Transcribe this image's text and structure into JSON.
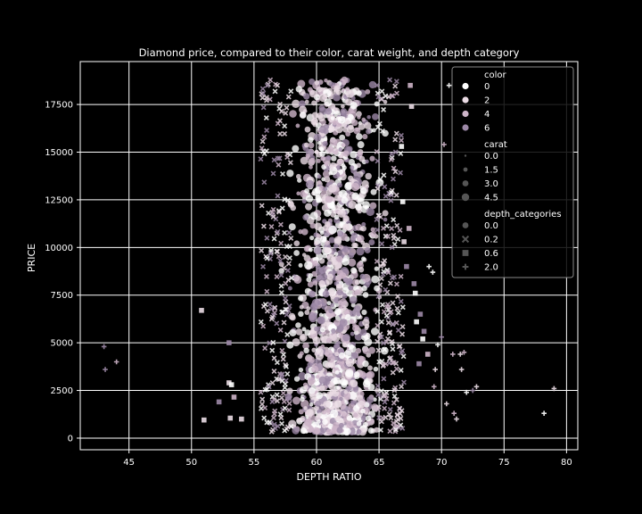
{
  "chart_data": {
    "type": "scatter",
    "title": "Diamond price, compared to their color, carat weight, and depth category",
    "xlabel": "DEPTH RATIO",
    "ylabel": "PRICE",
    "xlim": [
      41.1,
      80.9
    ],
    "ylim": [
      -610,
      19750
    ],
    "xticks": [
      "45",
      "50",
      "55",
      "60",
      "65",
      "70",
      "75",
      "80"
    ],
    "yticks": [
      "0",
      "2500",
      "5000",
      "7500",
      "10000",
      "12500",
      "15000",
      "17500"
    ],
    "grid": true,
    "background": "#000000",
    "axis_color": "#ffffff",
    "legend_position": "top-right",
    "legend": {
      "color_title": "color",
      "color_items": [
        {
          "label": "0",
          "color": "#ffffff"
        },
        {
          "label": "2",
          "color": "#eadbe4"
        },
        {
          "label": "4",
          "color": "#cdb4c8"
        },
        {
          "label": "6",
          "color": "#9c88a6"
        }
      ],
      "carat_title": "carat",
      "carat_items": [
        {
          "label": "0.0",
          "size": 1.2
        },
        {
          "label": "1.5",
          "size": 2.4
        },
        {
          "label": "3.0",
          "size": 3.4
        },
        {
          "label": "4.5",
          "size": 4.2
        }
      ],
      "depth_title": "depth_categories",
      "depth_items": [
        {
          "label": "0.0",
          "marker": "circle"
        },
        {
          "label": "0.2",
          "marker": "x"
        },
        {
          "label": "0.6",
          "marker": "square"
        },
        {
          "label": "2.0",
          "marker": "plus"
        }
      ]
    },
    "series": [
      {
        "depth_category": "0.0",
        "marker": "circle",
        "x_center": 61.5,
        "x_spread": 1.5,
        "y_range": [
          330,
          18800
        ]
      },
      {
        "depth_category": "0.2",
        "marker": "x",
        "x_ranges": [
          [
            55.5,
            58.0
          ],
          [
            64.8,
            67.0
          ]
        ],
        "y_range": [
          330,
          18800
        ]
      },
      {
        "depth_category": "0.6",
        "marker": "square",
        "points": [
          [
            50.8,
            6700
          ],
          [
            51.0,
            950
          ],
          [
            52.2,
            1900
          ],
          [
            53.0,
            5000
          ],
          [
            53.0,
            2900
          ],
          [
            53.2,
            2800
          ],
          [
            53.4,
            2150
          ],
          [
            53.1,
            1050
          ],
          [
            54.0,
            1000
          ],
          [
            66.8,
            15300
          ],
          [
            66.9,
            12400
          ],
          [
            67.0,
            10300
          ],
          [
            67.2,
            9000
          ],
          [
            67.5,
            18500
          ],
          [
            67.8,
            8100
          ],
          [
            68.3,
            6500
          ],
          [
            68.5,
            5200
          ],
          [
            68.9,
            4400
          ],
          [
            67.6,
            17400
          ],
          [
            67.4,
            11000
          ],
          [
            68.0,
            6100
          ],
          [
            68.6,
            5600
          ],
          [
            67.9,
            7600
          ],
          [
            68.2,
            3900
          ]
        ]
      },
      {
        "depth_category": "2.0",
        "marker": "plus",
        "points": [
          [
            43.0,
            4800
          ],
          [
            43.1,
            3600
          ],
          [
            44.0,
            4000
          ],
          [
            69.0,
            9000
          ],
          [
            69.3,
            8700
          ],
          [
            69.5,
            3600
          ],
          [
            70.2,
            15400
          ],
          [
            70.6,
            18500
          ],
          [
            70.9,
            4400
          ],
          [
            71.0,
            1300
          ],
          [
            71.2,
            1000
          ],
          [
            71.5,
            4400
          ],
          [
            71.6,
            3600
          ],
          [
            72.0,
            2400
          ],
          [
            72.5,
            2500
          ],
          [
            72.8,
            2700
          ],
          [
            69.7,
            4900
          ],
          [
            70.0,
            5300
          ],
          [
            69.4,
            2700
          ],
          [
            70.4,
            1800
          ],
          [
            71.8,
            4500
          ],
          [
            78.2,
            1300
          ],
          [
            79.0,
            2600
          ]
        ]
      }
    ]
  }
}
